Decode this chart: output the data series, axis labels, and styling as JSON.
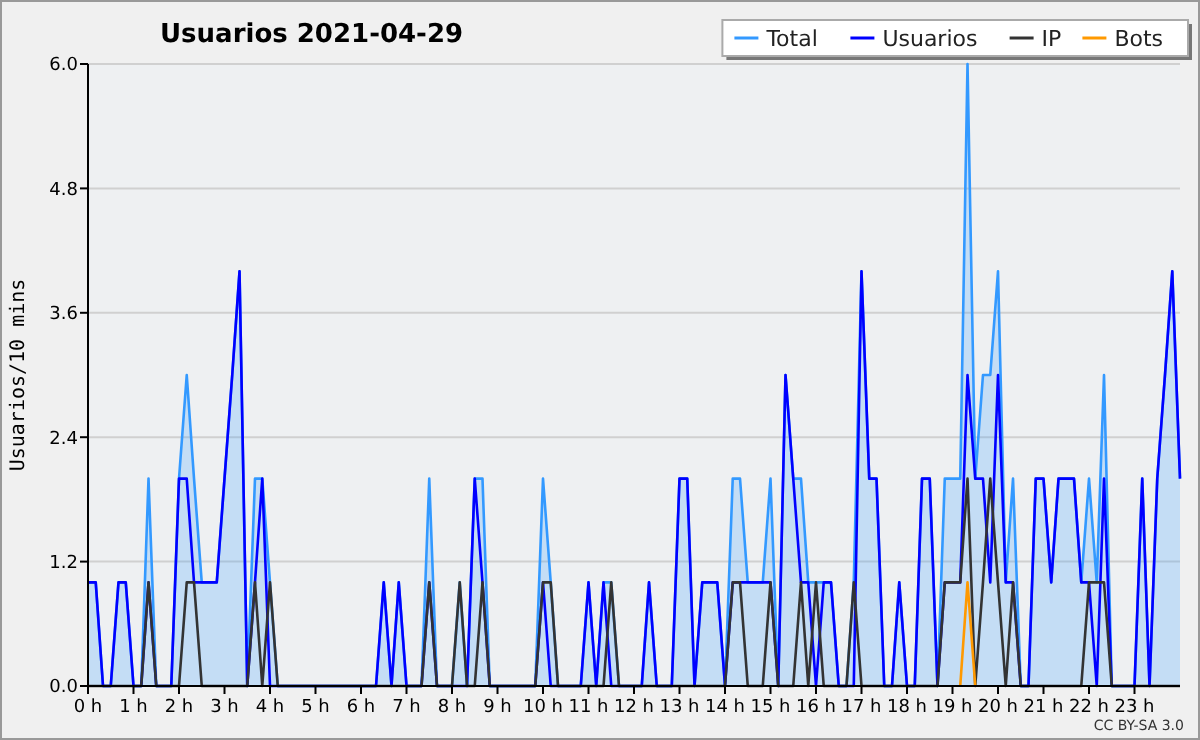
{
  "chart_data": {
    "type": "line",
    "title": "Usuarios  2021-04-29",
    "ylabel": "Usuarios/10 mins",
    "x": [
      0,
      0.17,
      0.33,
      0.5,
      0.67,
      0.83,
      1,
      1.17,
      1.33,
      1.5,
      1.67,
      1.83,
      2,
      2.17,
      2.33,
      2.5,
      2.67,
      2.83,
      3,
      3.17,
      3.33,
      3.5,
      3.67,
      3.83,
      4,
      4.17,
      4.33,
      4.5,
      4.67,
      4.83,
      5,
      5.17,
      5.33,
      5.5,
      5.67,
      5.83,
      6,
      6.17,
      6.33,
      6.5,
      6.67,
      6.83,
      7,
      7.17,
      7.33,
      7.5,
      7.67,
      7.83,
      8,
      8.17,
      8.33,
      8.5,
      8.67,
      8.83,
      9,
      9.17,
      9.33,
      9.5,
      9.67,
      9.83,
      10,
      10.17,
      10.33,
      10.5,
      10.67,
      10.83,
      11,
      11.17,
      11.33,
      11.5,
      11.67,
      11.83,
      12,
      12.17,
      12.33,
      12.5,
      12.67,
      12.83,
      13,
      13.17,
      13.33,
      13.5,
      13.67,
      13.83,
      14,
      14.17,
      14.33,
      14.5,
      14.67,
      14.83,
      15,
      15.17,
      15.33,
      15.5,
      15.67,
      15.83,
      16,
      16.17,
      16.33,
      16.5,
      16.67,
      16.83,
      17,
      17.17,
      17.33,
      17.5,
      17.67,
      17.83,
      18,
      18.17,
      18.33,
      18.5,
      18.67,
      18.83,
      19,
      19.17,
      19.33,
      19.5,
      19.67,
      19.83,
      20,
      20.17,
      20.33,
      20.5,
      20.67,
      20.83,
      21,
      21.17,
      21.33,
      21.5,
      21.67,
      21.83,
      22,
      22.17,
      22.33,
      22.5,
      22.67,
      22.83,
      23,
      23.17,
      23.33,
      23.5,
      23.67,
      23.83,
      24
    ],
    "series": [
      {
        "name": "Total",
        "type": "area",
        "color": "#3399ff",
        "values": [
          1,
          1,
          0,
          0,
          1,
          1,
          0,
          0,
          2,
          0,
          0,
          0,
          2,
          3,
          2,
          1,
          1,
          1,
          2,
          3,
          4,
          0,
          2,
          2,
          1,
          0,
          0,
          0,
          0,
          0,
          0,
          0,
          0,
          0,
          0,
          0,
          0,
          0,
          0,
          1,
          0,
          1,
          0,
          0,
          0,
          2,
          0,
          0,
          0,
          1,
          0,
          2,
          2,
          0,
          0,
          0,
          0,
          0,
          0,
          0,
          2,
          1,
          0,
          0,
          0,
          0,
          1,
          0,
          1,
          1,
          0,
          0,
          0,
          0,
          1,
          0,
          0,
          0,
          2,
          2,
          0,
          1,
          1,
          1,
          0,
          2,
          2,
          1,
          1,
          1,
          2,
          0,
          3,
          2,
          2,
          1,
          1,
          1,
          1,
          0,
          0,
          1,
          4,
          2,
          2,
          0,
          0,
          1,
          0,
          0,
          2,
          2,
          0,
          2,
          2,
          2,
          6,
          2,
          3,
          3,
          4,
          1,
          2,
          0,
          0,
          2,
          2,
          1,
          2,
          2,
          2,
          1,
          2,
          1,
          3,
          0,
          0,
          0,
          0,
          2,
          0,
          2,
          3,
          4,
          2
        ]
      },
      {
        "name": "Usuarios",
        "color": "#0000ff",
        "values": [
          1,
          1,
          0,
          0,
          1,
          1,
          0,
          0,
          1,
          0,
          0,
          0,
          2,
          2,
          1,
          1,
          1,
          1,
          2,
          3,
          4,
          0,
          1,
          2,
          0,
          0,
          0,
          0,
          0,
          0,
          0,
          0,
          0,
          0,
          0,
          0,
          0,
          0,
          0,
          1,
          0,
          1,
          0,
          0,
          0,
          1,
          0,
          0,
          0,
          0,
          0,
          2,
          1,
          0,
          0,
          0,
          0,
          0,
          0,
          0,
          1,
          0,
          0,
          0,
          0,
          0,
          1,
          0,
          1,
          0,
          0,
          0,
          0,
          0,
          1,
          0,
          0,
          0,
          2,
          2,
          0,
          1,
          1,
          1,
          0,
          1,
          1,
          1,
          1,
          1,
          1,
          0,
          3,
          2,
          1,
          1,
          0,
          1,
          1,
          0,
          0,
          0,
          4,
          2,
          2,
          0,
          0,
          1,
          0,
          0,
          2,
          2,
          0,
          1,
          1,
          1,
          3,
          2,
          2,
          1,
          3,
          1,
          1,
          0,
          0,
          2,
          2,
          1,
          2,
          2,
          2,
          1,
          1,
          0,
          2,
          0,
          0,
          0,
          0,
          2,
          0,
          2,
          3,
          4,
          2
        ]
      },
      {
        "name": "IP",
        "color": "#333333",
        "values": [
          0,
          0,
          0,
          0,
          0,
          0,
          0,
          0,
          1,
          0,
          0,
          0,
          0,
          1,
          1,
          0,
          0,
          0,
          0,
          0,
          0,
          0,
          1,
          0,
          1,
          0,
          0,
          0,
          0,
          0,
          0,
          0,
          0,
          0,
          0,
          0,
          0,
          0,
          0,
          0,
          0,
          0,
          0,
          0,
          0,
          1,
          0,
          0,
          0,
          1,
          0,
          0,
          1,
          0,
          0,
          0,
          0,
          0,
          0,
          0,
          1,
          1,
          0,
          0,
          0,
          0,
          0,
          0,
          0,
          1,
          0,
          0,
          0,
          0,
          0,
          0,
          0,
          0,
          0,
          0,
          0,
          0,
          0,
          0,
          0,
          1,
          1,
          0,
          0,
          0,
          1,
          0,
          0,
          0,
          1,
          0,
          1,
          0,
          0,
          0,
          0,
          1,
          0,
          0,
          0,
          0,
          0,
          0,
          0,
          0,
          0,
          0,
          0,
          1,
          1,
          1,
          2,
          0,
          1,
          2,
          1,
          0,
          1,
          0,
          0,
          0,
          0,
          0,
          0,
          0,
          0,
          0,
          1,
          1,
          1,
          0,
          0,
          0,
          0,
          0,
          0,
          0,
          0,
          0,
          0
        ]
      },
      {
        "name": "Bots",
        "color": "#ff9900",
        "values": [
          null,
          null,
          null,
          null,
          null,
          null,
          null,
          null,
          null,
          null,
          null,
          null,
          null,
          null,
          null,
          null,
          null,
          null,
          null,
          null,
          null,
          null,
          null,
          null,
          null,
          null,
          null,
          null,
          null,
          null,
          null,
          null,
          null,
          null,
          null,
          null,
          null,
          null,
          null,
          null,
          null,
          null,
          null,
          null,
          null,
          null,
          null,
          null,
          null,
          null,
          null,
          null,
          null,
          null,
          null,
          null,
          null,
          null,
          null,
          null,
          null,
          null,
          null,
          null,
          null,
          null,
          null,
          null,
          null,
          null,
          null,
          null,
          null,
          null,
          null,
          null,
          null,
          null,
          null,
          null,
          null,
          null,
          null,
          null,
          null,
          null,
          null,
          null,
          null,
          null,
          null,
          null,
          null,
          null,
          null,
          null,
          null,
          null,
          null,
          null,
          null,
          null,
          null,
          null,
          null,
          null,
          null,
          null,
          null,
          null,
          null,
          null,
          null,
          null,
          null,
          0,
          1,
          0,
          null,
          null,
          null,
          null,
          null,
          null,
          null,
          null,
          null,
          null,
          null,
          null,
          null,
          null,
          null,
          null,
          null,
          null,
          null,
          null,
          null,
          null,
          null,
          null,
          null,
          null,
          null
        ]
      }
    ],
    "xlim": [
      0,
      24
    ],
    "xticks": [
      {
        "value": 0,
        "label": "0 h"
      },
      {
        "value": 1,
        "label": "1 h"
      },
      {
        "value": 2,
        "label": "2 h"
      },
      {
        "value": 3,
        "label": "3 h"
      },
      {
        "value": 4,
        "label": "4 h"
      },
      {
        "value": 5,
        "label": "5 h"
      },
      {
        "value": 6,
        "label": "6 h"
      },
      {
        "value": 7,
        "label": "7 h"
      },
      {
        "value": 8,
        "label": "8 h"
      },
      {
        "value": 9,
        "label": "9 h"
      },
      {
        "value": 10,
        "label": "10 h"
      },
      {
        "value": 11,
        "label": "11 h"
      },
      {
        "value": 12,
        "label": "12 h"
      },
      {
        "value": 13,
        "label": "13 h"
      },
      {
        "value": 14,
        "label": "14 h"
      },
      {
        "value": 15,
        "label": "15 h"
      },
      {
        "value": 16,
        "label": "16 h"
      },
      {
        "value": 17,
        "label": "17 h"
      },
      {
        "value": 18,
        "label": "18 h"
      },
      {
        "value": 19,
        "label": "19 h"
      },
      {
        "value": 20,
        "label": "20 h"
      },
      {
        "value": 21,
        "label": "21 h"
      },
      {
        "value": 22,
        "label": "22 h"
      },
      {
        "value": 23,
        "label": "23 h"
      }
    ],
    "ylim": [
      0,
      6
    ],
    "yticks": [
      {
        "value": 0,
        "label": "0.0"
      },
      {
        "value": 1.2,
        "label": "1.2"
      },
      {
        "value": 2.4,
        "label": "2.4"
      },
      {
        "value": 3.6,
        "label": "3.6"
      },
      {
        "value": 4.8,
        "label": "4.8"
      },
      {
        "value": 6,
        "label": "6.0"
      }
    ],
    "grid": "y",
    "legend": "top right",
    "marker": "none",
    "annotations": [
      "CC BY-SA 3.0"
    ]
  }
}
